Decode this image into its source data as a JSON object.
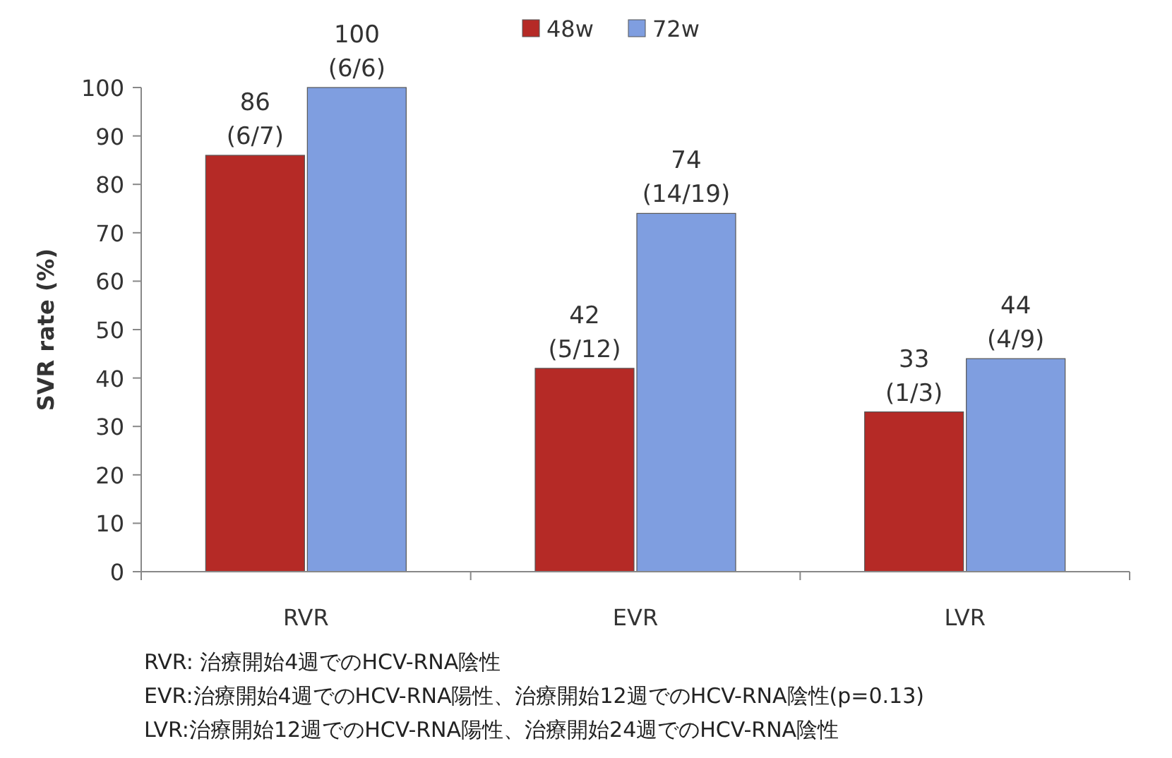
{
  "chart_data": {
    "type": "bar",
    "ylabel": "SVR rate (%)",
    "categories": [
      "RVR",
      "EVR",
      "LVR"
    ],
    "series": [
      {
        "name": "48w",
        "color": "#b52a26",
        "values": [
          86,
          42,
          33
        ],
        "value_labels": [
          "86 (6/7)",
          "42 (5/12)",
          "33 (1/3)"
        ]
      },
      {
        "name": "72w",
        "color": "#7f9ee0",
        "values": [
          100,
          74,
          44
        ],
        "value_labels": [
          "100 (6/6)",
          "74 (14/19)",
          "44 (4/9)"
        ]
      }
    ],
    "ylim": [
      0,
      100
    ],
    "yticks": [
      0,
      10,
      20,
      30,
      40,
      50,
      60,
      70,
      80,
      90,
      100
    ],
    "grid": false,
    "legend": "top",
    "annotations": [
      "RVR: 治療開始4週でのHCV-RNA陰性",
      "EVR:治療開始4週でのHCV-RNA陽性、治療開始12週でのHCV-RNA陰性(p=0.13)",
      "LVR:治療開始12週でのHCV-RNA陽性、治療開始24週でのHCV-RNA陰性"
    ]
  }
}
